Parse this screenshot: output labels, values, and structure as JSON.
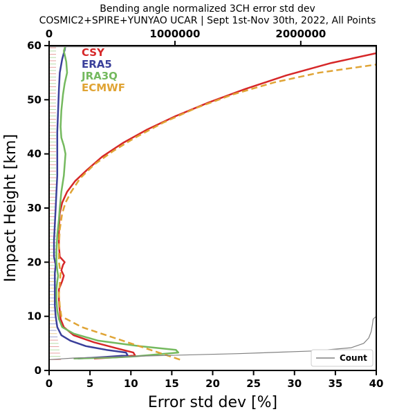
{
  "chart_data": {
    "type": "line",
    "title_line1": "Bending angle normalized 3CH error std dev",
    "title_line2": "COSMIC2+SPIRE+YUNYAO UCAR | Sept 1st-Nov 30th, 2022, All Points",
    "xlabel": "Error std dev [%]",
    "ylabel": "Impact Height [km]",
    "xlim": [
      0,
      40
    ],
    "ylim": [
      0,
      60
    ],
    "x_ticks": [
      0,
      5,
      10,
      15,
      20,
      25,
      30,
      35,
      40
    ],
    "y_ticks": [
      0,
      10,
      20,
      30,
      40,
      50,
      60
    ],
    "x2lim": [
      0,
      2600000
    ],
    "x2_ticks": [
      0,
      1000000,
      2000000
    ],
    "x2_tick_labels": [
      "0",
      "1000000",
      "2000000"
    ],
    "grid": false,
    "legend_placement": "top-left",
    "series": [
      {
        "name": "CSY",
        "color": "#d62728",
        "dash": "solid",
        "points": [
          [
            5.5,
            2.2
          ],
          [
            9.0,
            2.5
          ],
          [
            10.5,
            2.8
          ],
          [
            10.3,
            3.3
          ],
          [
            8.5,
            4.0
          ],
          [
            5.5,
            5.2
          ],
          [
            3.0,
            6.5
          ],
          [
            1.8,
            8.0
          ],
          [
            1.4,
            9.5
          ],
          [
            1.3,
            11
          ],
          [
            1.2,
            13
          ],
          [
            1.2,
            15
          ],
          [
            1.6,
            16.5
          ],
          [
            1.8,
            17.5
          ],
          [
            1.5,
            18.5
          ],
          [
            1.7,
            19.5
          ],
          [
            1.9,
            20.0
          ],
          [
            1.3,
            21
          ],
          [
            1.2,
            23
          ],
          [
            1.2,
            26
          ],
          [
            1.3,
            29
          ],
          [
            1.6,
            31
          ],
          [
            2.2,
            33
          ],
          [
            3.2,
            35
          ],
          [
            4.6,
            37
          ],
          [
            6.5,
            39.5
          ],
          [
            9.0,
            42
          ],
          [
            12.0,
            44.5
          ],
          [
            15.5,
            47
          ],
          [
            19.5,
            49.5
          ],
          [
            24.0,
            52
          ],
          [
            29.0,
            54.5
          ],
          [
            34.5,
            56.8
          ],
          [
            40.0,
            58.6
          ]
        ]
      },
      {
        "name": "ERA5",
        "color": "#3a3f9a",
        "dash": "solid",
        "points": [
          [
            3.5,
            2.2
          ],
          [
            7.0,
            2.5
          ],
          [
            9.6,
            2.8
          ],
          [
            9.4,
            3.3
          ],
          [
            7.0,
            3.8
          ],
          [
            4.5,
            4.5
          ],
          [
            2.6,
            5.5
          ],
          [
            1.5,
            6.5
          ],
          [
            1.0,
            8.0
          ],
          [
            0.8,
            10
          ],
          [
            0.7,
            12
          ],
          [
            0.7,
            14
          ],
          [
            0.7,
            16
          ],
          [
            0.7,
            18
          ],
          [
            0.8,
            19.5
          ],
          [
            0.6,
            21
          ],
          [
            0.6,
            24
          ],
          [
            0.7,
            27
          ],
          [
            0.8,
            30
          ],
          [
            0.9,
            33
          ],
          [
            1.0,
            36
          ],
          [
            1.0,
            40
          ],
          [
            1.0,
            44
          ],
          [
            1.1,
            48
          ],
          [
            1.2,
            52
          ],
          [
            1.3,
            55
          ],
          [
            1.6,
            57.5
          ],
          [
            1.9,
            59.2
          ],
          [
            2.0,
            60
          ]
        ]
      },
      {
        "name": "JRA3Q",
        "color": "#74b95e",
        "dash": "solid",
        "points": [
          [
            3.0,
            2.2
          ],
          [
            8.0,
            2.4
          ],
          [
            10.5,
            2.6
          ],
          [
            13.5,
            3.0
          ],
          [
            15.8,
            3.3
          ],
          [
            15.5,
            3.8
          ],
          [
            11.0,
            4.5
          ],
          [
            6.0,
            5.5
          ],
          [
            3.0,
            6.8
          ],
          [
            1.6,
            8.0
          ],
          [
            1.2,
            9.5
          ],
          [
            1.0,
            11
          ],
          [
            0.9,
            13
          ],
          [
            0.9,
            15
          ],
          [
            1.0,
            16.5
          ],
          [
            1.1,
            17.5
          ],
          [
            1.0,
            18.5
          ],
          [
            0.9,
            20
          ],
          [
            0.9,
            22
          ],
          [
            1.0,
            25
          ],
          [
            1.2,
            28
          ],
          [
            1.3,
            30
          ],
          [
            1.5,
            33
          ],
          [
            1.8,
            36
          ],
          [
            1.9,
            38
          ],
          [
            2.0,
            40
          ],
          [
            1.8,
            41.5
          ],
          [
            1.5,
            43
          ],
          [
            1.4,
            45
          ],
          [
            1.5,
            48
          ],
          [
            1.7,
            51
          ],
          [
            1.9,
            53
          ],
          [
            2.2,
            55
          ],
          [
            2.1,
            57
          ],
          [
            1.8,
            59
          ],
          [
            2.0,
            60
          ]
        ]
      },
      {
        "name": "ECMWF",
        "color": "#e0a435",
        "dash": "dashed",
        "points": [
          [
            16.0,
            2.0
          ],
          [
            12.0,
            4.0
          ],
          [
            8.0,
            6.0
          ],
          [
            4.0,
            8.0
          ],
          [
            1.5,
            10.0
          ],
          [
            1.3,
            12
          ],
          [
            1.2,
            14
          ],
          [
            1.3,
            16
          ],
          [
            1.4,
            18
          ],
          [
            1.2,
            20
          ],
          [
            1.2,
            23
          ],
          [
            1.3,
            26
          ],
          [
            1.6,
            29
          ],
          [
            2.0,
            31
          ],
          [
            2.7,
            33
          ],
          [
            3.8,
            35.5
          ],
          [
            5.5,
            38
          ],
          [
            7.8,
            40.5
          ],
          [
            10.5,
            43
          ],
          [
            14.0,
            45.8
          ],
          [
            18.0,
            48.5
          ],
          [
            22.5,
            51
          ],
          [
            27.5,
            53.2
          ],
          [
            33.0,
            55
          ],
          [
            40.0,
            56.5
          ]
        ]
      },
      {
        "name": "Count",
        "color": "#808080",
        "dash": "solid",
        "axis": "top",
        "points": [
          [
            0,
            2.0
          ],
          [
            200000,
            2.3
          ],
          [
            800000,
            2.7
          ],
          [
            1500000,
            3.1
          ],
          [
            2100000,
            3.6
          ],
          [
            2400000,
            4.2
          ],
          [
            2500000,
            5.0
          ],
          [
            2540000,
            6.0
          ],
          [
            2560000,
            7.2
          ],
          [
            2570000,
            8.5
          ],
          [
            2575000,
            9.5
          ],
          [
            2600000,
            10.0
          ],
          [
            2605000,
            20
          ],
          [
            2610000,
            40
          ],
          [
            2610000,
            59.8
          ],
          [
            0,
            59.8
          ]
        ]
      }
    ],
    "count_legend_label": "Count"
  }
}
